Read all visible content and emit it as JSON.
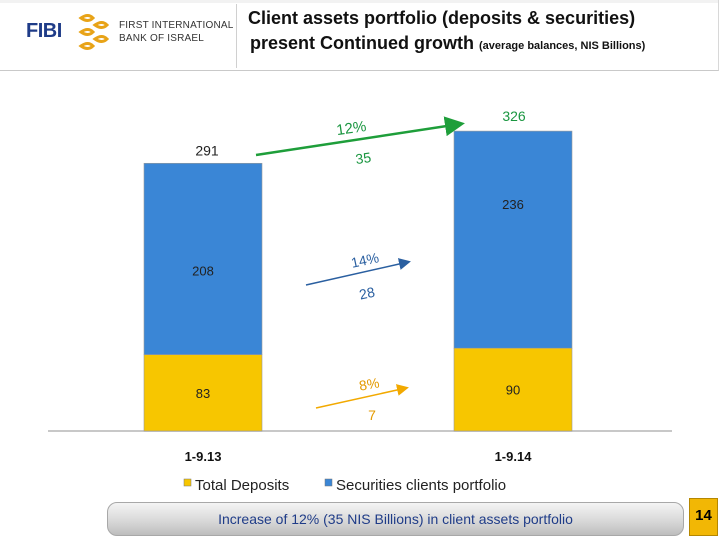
{
  "header": {
    "logo_text": "FIBI",
    "bank_name_line1": "FIRST INTERNATIONAL",
    "bank_name_line2": "BANK OF ISRAEL",
    "title_line1": "Client assets portfolio (deposits & securities)",
    "title_line2": "present Continued growth",
    "title_note": "(average balances, NIS Billions)"
  },
  "chart_data": {
    "type": "bar",
    "stacked": true,
    "categories": [
      "1-9.13",
      "1-9.14"
    ],
    "series": [
      {
        "name": "Total Deposits",
        "values": [
          83,
          90
        ],
        "color": "#f7c600"
      },
      {
        "name": "Securities clients portfolio",
        "values": [
          208,
          236
        ],
        "color": "#3a86d6"
      }
    ],
    "totals": [
      291,
      326
    ],
    "ylim": [
      0,
      340
    ],
    "legend_position": "bottom",
    "annotations": {
      "total": {
        "pct": "12%",
        "diff": "35"
      },
      "securities": {
        "pct": "14%",
        "diff": "28"
      },
      "deposits": {
        "pct": "8%",
        "diff": "7"
      }
    }
  },
  "banner": {
    "text": "Increase of 12% (35 NIS Billions) in client assets portfolio"
  },
  "page_number": "14",
  "colors": {
    "brand_blue": "#1f3c88",
    "accent_gold": "#f2b705",
    "arrow_green": "#1e9e3a",
    "arrow_blue": "#2a5fa0",
    "arrow_orange": "#f2a900"
  }
}
